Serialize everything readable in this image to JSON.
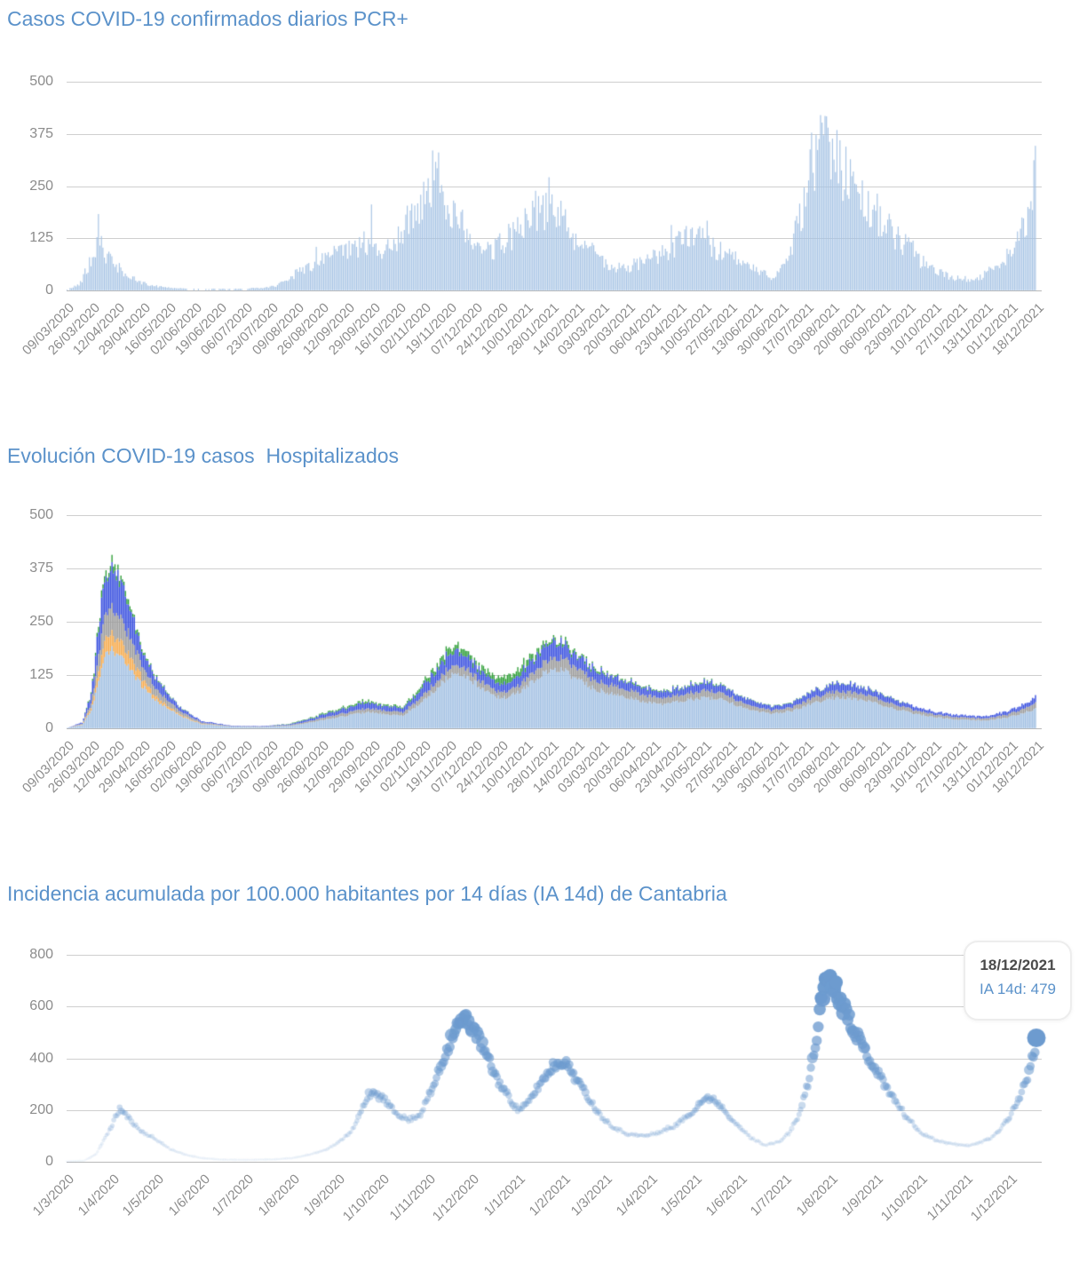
{
  "style": {
    "title_color": "#5b92ca",
    "axis_label_color": "#8c8c8c",
    "grid_color": "#cfcfcf",
    "zero_line_color": "#b9b9b9",
    "background": "#ffffff"
  },
  "chart_data": [
    {
      "id": "pcr-daily-cases",
      "type": "bar",
      "title": "Casos COVID-19 confirmados diarios PCR+",
      "bar_color": "#a6c3e4",
      "ylim": [
        0,
        500
      ],
      "yticks": [
        0,
        125,
        250,
        375,
        500
      ],
      "x_tick_labels": [
        "09/03/2020",
        "26/03/2020",
        "12/04/2020",
        "29/04/2020",
        "16/05/2020",
        "02/06/2020",
        "19/06/2020",
        "06/07/2020",
        "23/07/2020",
        "09/08/2020",
        "26/08/2020",
        "12/09/2020",
        "29/09/2020",
        "16/10/2020",
        "02/11/2020",
        "19/11/2020",
        "07/12/2020",
        "24/12/2020",
        "10/01/2021",
        "28/01/2021",
        "14/02/2021",
        "03/03/2021",
        "20/03/2021",
        "06/04/2021",
        "23/04/2021",
        "10/05/2021",
        "27/05/2021",
        "13/06/2021",
        "30/06/2021",
        "17/07/2021",
        "03/08/2021",
        "20/08/2021",
        "06/09/2021",
        "23/09/2021",
        "10/10/2021",
        "27/10/2021",
        "13/11/2021",
        "01/12/2021",
        "18/12/2021"
      ],
      "days_total": 650,
      "keypoints": [
        [
          0,
          2
        ],
        [
          8,
          15
        ],
        [
          14,
          55
        ],
        [
          18,
          95
        ],
        [
          21,
          150
        ],
        [
          25,
          95
        ],
        [
          30,
          70
        ],
        [
          34,
          60
        ],
        [
          40,
          38
        ],
        [
          48,
          22
        ],
        [
          55,
          14
        ],
        [
          65,
          8
        ],
        [
          80,
          4
        ],
        [
          100,
          3
        ],
        [
          118,
          3
        ],
        [
          132,
          6
        ],
        [
          140,
          12
        ],
        [
          148,
          30
        ],
        [
          156,
          50
        ],
        [
          165,
          65
        ],
        [
          172,
          78
        ],
        [
          180,
          92
        ],
        [
          190,
          102
        ],
        [
          200,
          118
        ],
        [
          205,
          100
        ],
        [
          212,
          92
        ],
        [
          218,
          120
        ],
        [
          226,
          160
        ],
        [
          233,
          205
        ],
        [
          240,
          255
        ],
        [
          247,
          290
        ],
        [
          252,
          260
        ],
        [
          258,
          210
        ],
        [
          264,
          150
        ],
        [
          270,
          115
        ],
        [
          277,
          92
        ],
        [
          284,
          100
        ],
        [
          290,
          118
        ],
        [
          298,
          140
        ],
        [
          305,
          170
        ],
        [
          312,
          205
        ],
        [
          318,
          215
        ],
        [
          325,
          205
        ],
        [
          332,
          180
        ],
        [
          340,
          140
        ],
        [
          348,
          115
        ],
        [
          356,
          85
        ],
        [
          364,
          62
        ],
        [
          372,
          58
        ],
        [
          382,
          66
        ],
        [
          392,
          80
        ],
        [
          402,
          95
        ],
        [
          410,
          120
        ],
        [
          417,
          135
        ],
        [
          424,
          132
        ],
        [
          432,
          112
        ],
        [
          440,
          95
        ],
        [
          448,
          80
        ],
        [
          456,
          60
        ],
        [
          464,
          45
        ],
        [
          472,
          36
        ],
        [
          480,
          60
        ],
        [
          486,
          110
        ],
        [
          492,
          200
        ],
        [
          498,
          300
        ],
        [
          503,
          360
        ],
        [
          507,
          370
        ],
        [
          512,
          330
        ],
        [
          518,
          305
        ],
        [
          526,
          270
        ],
        [
          534,
          235
        ],
        [
          542,
          200
        ],
        [
          550,
          160
        ],
        [
          558,
          125
        ],
        [
          566,
          100
        ],
        [
          574,
          70
        ],
        [
          582,
          50
        ],
        [
          590,
          38
        ],
        [
          598,
          30
        ],
        [
          606,
          28
        ],
        [
          614,
          38
        ],
        [
          622,
          60
        ],
        [
          630,
          90
        ],
        [
          636,
          120
        ],
        [
          642,
          165
        ],
        [
          646,
          215
        ],
        [
          649,
          255
        ]
      ],
      "spikes": [
        [
          21,
          183
        ],
        [
          204,
          206
        ],
        [
          247,
          308
        ],
        [
          316,
          226
        ],
        [
          499,
          378
        ],
        [
          505,
          420
        ],
        [
          510,
          390
        ],
        [
          648,
          312
        ]
      ]
    },
    {
      "id": "hospitalized-evolution",
      "type": "stacked-bar",
      "title": "Evolución COVID-19 casos  Hospitalizados",
      "ylim": [
        0,
        500
      ],
      "yticks": [
        0,
        125,
        250,
        375,
        500
      ],
      "x_tick_labels": [
        "09/03/2020",
        "26/03/2020",
        "12/04/2020",
        "29/04/2020",
        "16/05/2020",
        "02/06/2020",
        "19/06/2020",
        "06/07/2020",
        "23/07/2020",
        "09/08/2020",
        "26/08/2020",
        "12/09/2020",
        "29/09/2020",
        "16/10/2020",
        "02/11/2020",
        "19/11/2020",
        "07/12/2020",
        "24/12/2020",
        "10/01/2021",
        "28/01/2021",
        "14/02/2021",
        "03/03/2021",
        "20/03/2021",
        "06/04/2021",
        "23/04/2021",
        "10/05/2021",
        "27/05/2021",
        "13/06/2021",
        "30/06/2021",
        "17/07/2021",
        "03/08/2021",
        "20/08/2021",
        "06/09/2021",
        "23/09/2021",
        "10/10/2021",
        "27/10/2021",
        "13/11/2021",
        "01/12/2021",
        "18/12/2021"
      ],
      "days_total": 650,
      "days": [
        0,
        10,
        16,
        22,
        26,
        30,
        36,
        42,
        50,
        58,
        66,
        75,
        90,
        110,
        130,
        150,
        165,
        180,
        195,
        205,
        215,
        225,
        235,
        245,
        255,
        262,
        270,
        278,
        287,
        295,
        307,
        320,
        330,
        340,
        352,
        365,
        378,
        390,
        400,
        412,
        425,
        435,
        448,
        460,
        472,
        485,
        500,
        515,
        525,
        540,
        555,
        570,
        585,
        600,
        615,
        630,
        640,
        649
      ],
      "series": [
        {
          "name": "light-blue-segment",
          "color": "#a6c3e4",
          "values": [
            1,
            8,
            40,
            120,
            180,
            185,
            170,
            140,
            100,
            70,
            50,
            30,
            10,
            4,
            3,
            6,
            15,
            25,
            35,
            38,
            32,
            30,
            55,
            85,
            120,
            125,
            115,
            95,
            75,
            70,
            95,
            135,
            140,
            120,
            95,
            80,
            70,
            60,
            55,
            65,
            70,
            72,
            55,
            42,
            35,
            40,
            60,
            72,
            70,
            60,
            45,
            33,
            25,
            20,
            18,
            25,
            35,
            45
          ]
        },
        {
          "name": "orange-segment",
          "color": "#f6ac50",
          "values": [
            0,
            1,
            6,
            25,
            38,
            36,
            33,
            28,
            18,
            10,
            6,
            3,
            1,
            0,
            0,
            0,
            0,
            0,
            0,
            0,
            0,
            0,
            0,
            0,
            0,
            0,
            0,
            0,
            0,
            0,
            0,
            0,
            0,
            0,
            0,
            0,
            0,
            0,
            0,
            0,
            0,
            0,
            0,
            0,
            0,
            0,
            0,
            0,
            0,
            0,
            0,
            0,
            0,
            0,
            0,
            0,
            0,
            0
          ]
        },
        {
          "name": "gray-segment",
          "color": "#9e9e9e",
          "values": [
            0,
            2,
            10,
            42,
            60,
            58,
            52,
            45,
            30,
            20,
            14,
            8,
            3,
            1,
            1,
            2,
            4,
            6,
            8,
            9,
            8,
            8,
            12,
            16,
            20,
            20,
            18,
            16,
            14,
            14,
            18,
            25,
            28,
            25,
            22,
            20,
            18,
            16,
            14,
            15,
            16,
            16,
            13,
            10,
            8,
            9,
            13,
            15,
            15,
            13,
            10,
            8,
            6,
            5,
            5,
            7,
            10,
            14
          ]
        },
        {
          "name": "blue-segment",
          "color": "#3f55e0",
          "values": [
            0,
            3,
            18,
            70,
            95,
            92,
            80,
            60,
            40,
            25,
            16,
            9,
            3,
            1,
            1,
            2,
            6,
            9,
            12,
            12,
            10,
            10,
            18,
            25,
            30,
            32,
            28,
            24,
            20,
            18,
            25,
            35,
            38,
            32,
            26,
            22,
            18,
            16,
            14,
            16,
            18,
            18,
            14,
            11,
            9,
            10,
            15,
            18,
            17,
            14,
            11,
            8,
            6,
            5,
            5,
            7,
            10,
            14
          ]
        },
        {
          "name": "green-segment",
          "color": "#36a23e",
          "values": [
            0,
            0,
            3,
            10,
            15,
            13,
            10,
            8,
            5,
            3,
            2,
            1,
            0,
            0,
            0,
            1,
            2,
            3,
            4,
            4,
            3,
            3,
            6,
            9,
            12,
            13,
            11,
            9,
            14,
            16,
            12,
            8,
            6,
            5,
            4,
            3,
            3,
            2,
            2,
            2,
            2,
            2,
            1,
            1,
            1,
            1,
            1,
            1,
            1,
            1,
            1,
            0,
            0,
            0,
            0,
            0,
            0,
            0
          ]
        }
      ]
    },
    {
      "id": "ia14d-cantabria",
      "type": "scatter",
      "title": "Incidencia acumulada por 100.000 habitantes por 14 días (IA 14d) de Cantabria",
      "dot_color": "#6d9bcf",
      "ylim": [
        0,
        800
      ],
      "yticks": [
        0,
        200,
        400,
        600,
        800
      ],
      "x_tick_labels": [
        "1/3/2020",
        "1/4/2020",
        "1/5/2020",
        "1/6/2020",
        "1/7/2020",
        "1/8/2020",
        "1/9/2020",
        "1/10/2020",
        "1/11/2020",
        "1/12/2020",
        "1/1/2021",
        "1/2/2021",
        "1/3/2021",
        "1/4/2021",
        "1/5/2021",
        "1/6/2021",
        "1/7/2021",
        "1/8/2021",
        "1/9/2021",
        "1/10/2021",
        "1/11/2021",
        "1/12/2021"
      ],
      "x_tick_days": [
        0,
        31,
        61,
        92,
        122,
        153,
        184,
        214,
        245,
        275,
        306,
        337,
        365,
        396,
        426,
        457,
        487,
        518,
        549,
        579,
        610,
        640
      ],
      "days_total": 659,
      "keypoints": [
        [
          0,
          1
        ],
        [
          12,
          4
        ],
        [
          20,
          30
        ],
        [
          28,
          110
        ],
        [
          36,
          205
        ],
        [
          42,
          170
        ],
        [
          50,
          120
        ],
        [
          61,
          85
        ],
        [
          70,
          50
        ],
        [
          80,
          28
        ],
        [
          92,
          14
        ],
        [
          105,
          8
        ],
        [
          122,
          7
        ],
        [
          140,
          9
        ],
        [
          153,
          14
        ],
        [
          165,
          28
        ],
        [
          175,
          45
        ],
        [
          184,
          72
        ],
        [
          195,
          130
        ],
        [
          205,
          265
        ],
        [
          214,
          250
        ],
        [
          222,
          195
        ],
        [
          232,
          160
        ],
        [
          240,
          185
        ],
        [
          248,
          280
        ],
        [
          256,
          400
        ],
        [
          263,
          510
        ],
        [
          270,
          550
        ],
        [
          276,
          520
        ],
        [
          284,
          420
        ],
        [
          293,
          310
        ],
        [
          306,
          200
        ],
        [
          313,
          225
        ],
        [
          321,
          300
        ],
        [
          330,
          370
        ],
        [
          337,
          390
        ],
        [
          344,
          340
        ],
        [
          352,
          265
        ],
        [
          362,
          180
        ],
        [
          372,
          130
        ],
        [
          382,
          105
        ],
        [
          393,
          100
        ],
        [
          403,
          115
        ],
        [
          413,
          140
        ],
        [
          423,
          185
        ],
        [
          431,
          235
        ],
        [
          438,
          248
        ],
        [
          446,
          205
        ],
        [
          455,
          140
        ],
        [
          465,
          90
        ],
        [
          474,
          65
        ],
        [
          483,
          75
        ],
        [
          490,
          110
        ],
        [
          497,
          180
        ],
        [
          503,
          300
        ],
        [
          508,
          450
        ],
        [
          512,
          610
        ],
        [
          515,
          712
        ],
        [
          519,
          698
        ],
        [
          524,
          640
        ],
        [
          529,
          580
        ],
        [
          537,
          480
        ],
        [
          545,
          395
        ],
        [
          552,
          330
        ],
        [
          560,
          255
        ],
        [
          569,
          180
        ],
        [
          579,
          115
        ],
        [
          589,
          85
        ],
        [
          600,
          70
        ],
        [
          610,
          62
        ],
        [
          618,
          70
        ],
        [
          627,
          92
        ],
        [
          634,
          130
        ],
        [
          641,
          185
        ],
        [
          647,
          255
        ],
        [
          652,
          330
        ],
        [
          656,
          410
        ],
        [
          658,
          465
        ]
      ],
      "highlight": {
        "day": 658,
        "value": 479
      },
      "tooltip": {
        "date": "18/12/2021",
        "value_label": "IA 14d: 479"
      }
    }
  ]
}
